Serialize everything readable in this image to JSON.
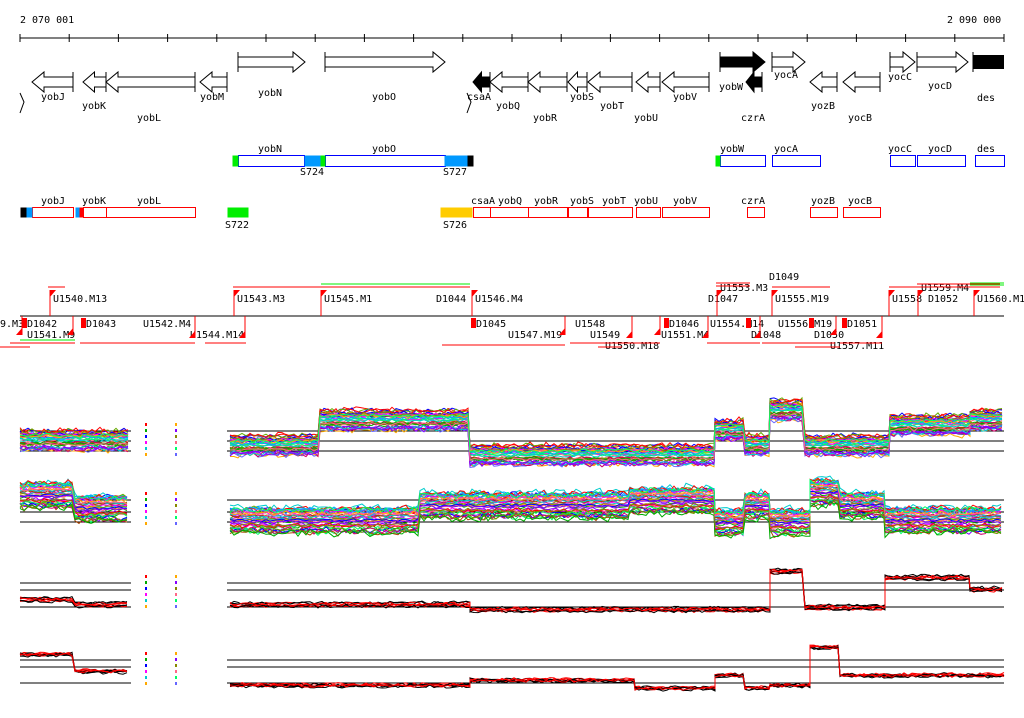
{
  "ruler": {
    "start_label": "2 070 001",
    "end_label": "2 090 000"
  },
  "genes_forward": [
    {
      "name": "yobN",
      "filled": false
    },
    {
      "name": "yobO",
      "filled": false
    },
    {
      "name": "yobW",
      "filled": true
    },
    {
      "name": "yocA",
      "filled": false
    },
    {
      "name": "yocC",
      "filled": false
    },
    {
      "name": "yocD",
      "filled": false
    },
    {
      "name": "des",
      "filled": true
    }
  ],
  "genes_reverse": [
    {
      "name": "yobJ",
      "filled": false
    },
    {
      "name": "yobK",
      "filled": false
    },
    {
      "name": "yobL",
      "filled": false
    },
    {
      "name": "yobM",
      "filled": false
    },
    {
      "name": "csaA",
      "filled": true
    },
    {
      "name": "yobQ",
      "filled": false
    },
    {
      "name": "yobR",
      "filled": false
    },
    {
      "name": "yobS",
      "filled": false
    },
    {
      "name": "yobT",
      "filled": false
    },
    {
      "name": "yobU",
      "filled": false
    },
    {
      "name": "yobV",
      "filled": false
    },
    {
      "name": "czrA",
      "filled": true
    },
    {
      "name": "yozB",
      "filled": false
    },
    {
      "name": "yocB",
      "filled": false
    }
  ],
  "operons_forward": {
    "genes": [
      "yobN",
      "yobO",
      "yobW",
      "yocA",
      "yocC",
      "yocD",
      "des"
    ],
    "sites": [
      "S724",
      "S727"
    ]
  },
  "operons_reverse": {
    "genes": [
      "yobJ",
      "yobK",
      "yobL",
      "csaA",
      "yobQ",
      "yobR",
      "yobS",
      "yobT",
      "yobU",
      "yobV",
      "czrA",
      "yozB",
      "yocB"
    ],
    "sites": [
      "S722",
      "S726"
    ]
  },
  "segments_upper": [
    "U1540.M13",
    "U1543.M3",
    "U1545.M1",
    "D1044",
    "U1546.M4",
    "D1047",
    "U1553.M3",
    "U1555.M19",
    "D1049",
    "U1558",
    "U1559.M4",
    "D1052",
    "U1560.M1"
  ],
  "segments_lower": [
    "9.M3",
    "D1042",
    "U1541.M9",
    "D1043",
    "U1542.M4",
    "U1544.M14",
    "D1045",
    "U1547.M19",
    "U1548",
    "U1549",
    "U1550.M18",
    "D1046",
    "U1551.M4",
    "U1554.M14",
    "D1048",
    "U1556.M19",
    "D1050",
    "U1557.M11",
    "D1051"
  ],
  "colors": {
    "forward": "#0000ff",
    "reverse": "#ff0000",
    "green": "#00ee00",
    "blue": "#0099ff",
    "yellow": "#ffcc00",
    "black": "#000000"
  }
}
